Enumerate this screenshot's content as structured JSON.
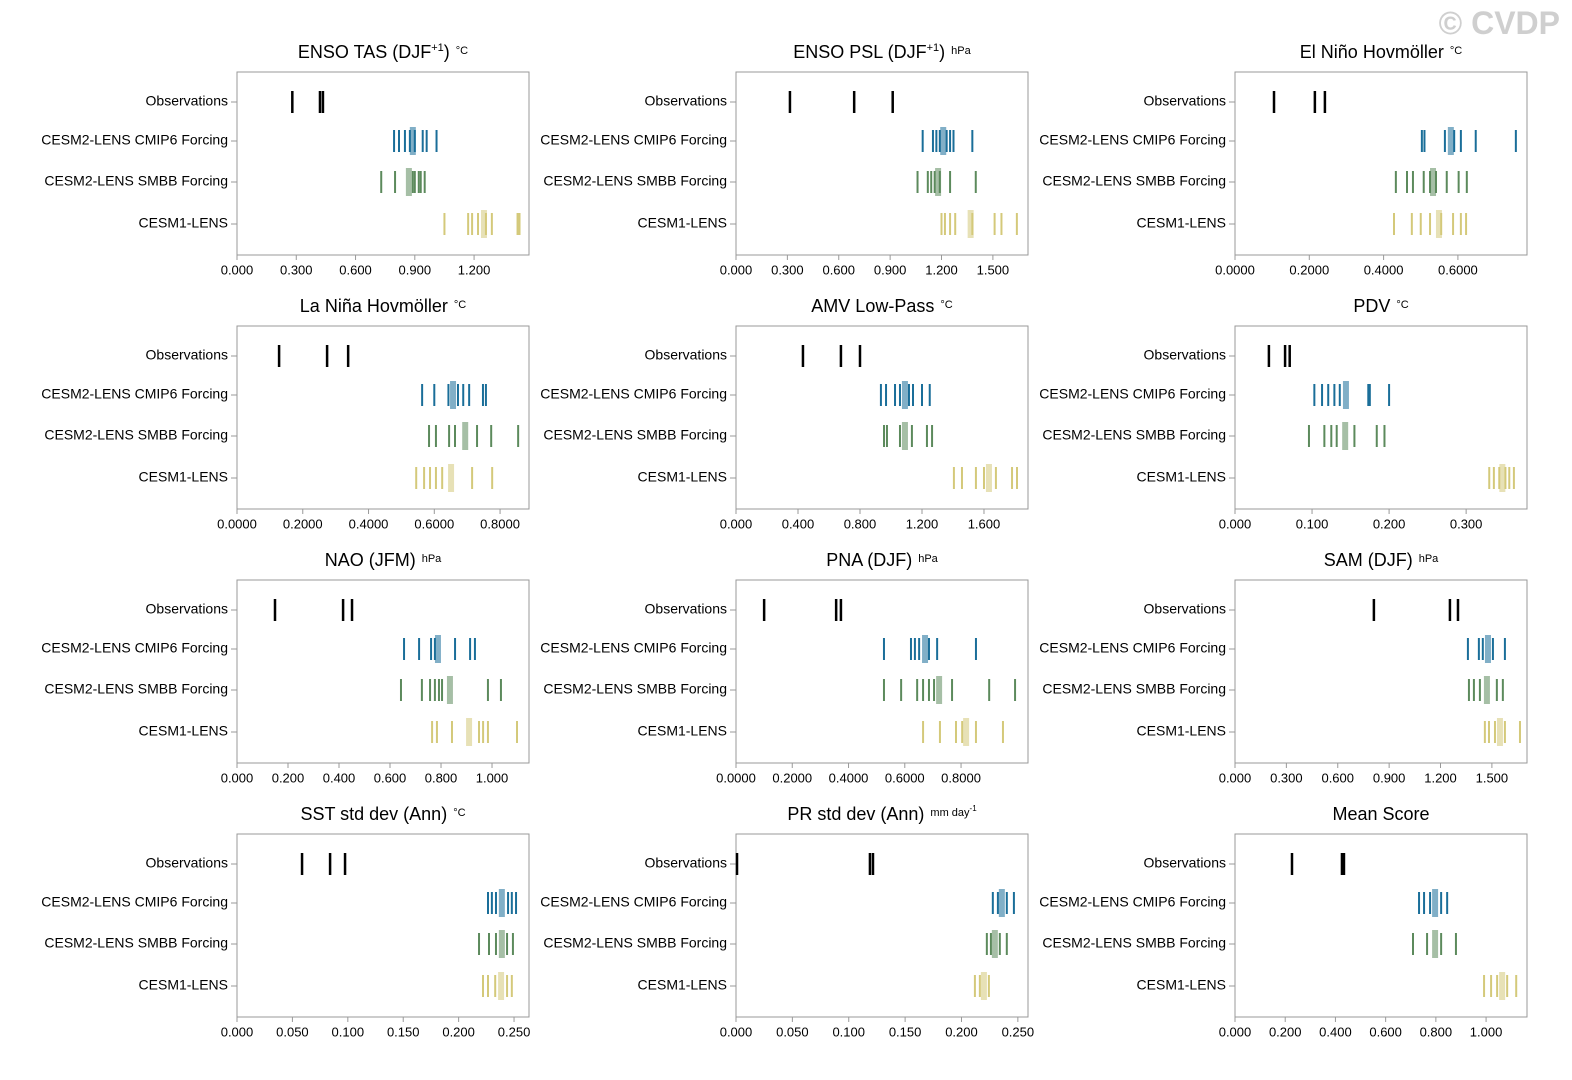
{
  "watermark": "© CVDP",
  "chart_data": [
    {
      "type": "strip",
      "title": "ENSO TAS (DJF",
      "title_sup": "+1",
      "title_end": ")",
      "units": "°C",
      "xlim": [
        0,
        1.478
      ],
      "xticks": [
        {
          "value": 0,
          "label": "0.000"
        },
        {
          "value": 0.3,
          "label": "0.300"
        },
        {
          "value": 0.6,
          "label": "0.600"
        },
        {
          "value": 0.9,
          "label": "0.900"
        },
        {
          "value": 1.2,
          "label": "1.200"
        }
      ],
      "rows": [
        {
          "label": "Observations",
          "color": "#000000",
          "values": [
            0.28,
            0.42,
            0.435
          ]
        },
        {
          "label": "CESM2-LENS CMIP6 Forcing",
          "color": "#1a6e99",
          "values": [
            0.795,
            0.82,
            0.85,
            0.875,
            0.9,
            0.94,
            0.96,
            1.01
          ],
          "mean": 0.89
        },
        {
          "label": "CESM2-LENS SMBB Forcing",
          "color": "#5c8a5c",
          "values": [
            0.73,
            0.8,
            0.89,
            0.9,
            0.92,
            0.93,
            0.95
          ],
          "mean": 0.87
        },
        {
          "label": "CESM1-LENS",
          "color": "#d4c97a",
          "values": [
            1.05,
            1.17,
            1.19,
            1.22,
            1.26,
            1.29,
            1.42,
            1.43
          ],
          "mean": 1.25
        }
      ]
    },
    {
      "type": "strip",
      "title": "ENSO PSL (DJF",
      "title_sup": "+1",
      "title_end": ")",
      "units": "hPa",
      "xlim": [
        0,
        1.705
      ],
      "xticks": [
        {
          "value": 0,
          "label": "0.000"
        },
        {
          "value": 0.3,
          "label": "0.300"
        },
        {
          "value": 0.6,
          "label": "0.600"
        },
        {
          "value": 0.9,
          "label": "0.900"
        },
        {
          "value": 1.2,
          "label": "1.200"
        },
        {
          "value": 1.5,
          "label": "1.500"
        }
      ],
      "rows": [
        {
          "label": "Observations",
          "color": "#000000",
          "values": [
            0.315,
            0.69,
            0.915
          ]
        },
        {
          "label": "CESM2-LENS CMIP6 Forcing",
          "color": "#1a6e99",
          "values": [
            1.09,
            1.15,
            1.17,
            1.19,
            1.23,
            1.25,
            1.27,
            1.38
          ],
          "mean": 1.21
        },
        {
          "label": "CESM2-LENS SMBB Forcing",
          "color": "#5c8a5c",
          "values": [
            1.06,
            1.12,
            1.14,
            1.16,
            1.19,
            1.25,
            1.4
          ],
          "mean": 1.18
        },
        {
          "label": "CESM1-LENS",
          "color": "#d4c97a",
          "values": [
            1.2,
            1.22,
            1.25,
            1.28,
            1.38,
            1.51,
            1.55,
            1.64
          ],
          "mean": 1.37
        }
      ]
    },
    {
      "type": "strip",
      "title": "El Niño Hovmöller",
      "units": "°C",
      "xlim": [
        0,
        0.786
      ],
      "xticks": [
        {
          "value": 0,
          "label": "0.0000"
        },
        {
          "value": 0.2,
          "label": "0.2000"
        },
        {
          "value": 0.4,
          "label": "0.4000"
        },
        {
          "value": 0.6,
          "label": "0.6000"
        }
      ],
      "rows": [
        {
          "label": "Observations",
          "color": "#000000",
          "values": [
            0.105,
            0.215,
            0.242
          ]
        },
        {
          "label": "CESM2-LENS CMIP6 Forcing",
          "color": "#1a6e99",
          "values": [
            0.503,
            0.51,
            0.565,
            0.59,
            0.608,
            0.648,
            0.756
          ],
          "mean": 0.581
        },
        {
          "label": "CESM2-LENS SMBB Forcing",
          "color": "#5c8a5c",
          "values": [
            0.433,
            0.463,
            0.479,
            0.508,
            0.525,
            0.541,
            0.57,
            0.602,
            0.624
          ],
          "mean": 0.533
        },
        {
          "label": "CESM1-LENS",
          "color": "#d4c97a",
          "values": [
            0.428,
            0.476,
            0.5,
            0.525,
            0.555,
            0.587,
            0.608,
            0.622
          ],
          "mean": 0.549
        }
      ]
    },
    {
      "type": "strip",
      "title": "La Niña Hovmöller",
      "units": "°C",
      "xlim": [
        0,
        0.888
      ],
      "xticks": [
        {
          "value": 0,
          "label": "0.0000"
        },
        {
          "value": 0.2,
          "label": "0.2000"
        },
        {
          "value": 0.4,
          "label": "0.4000"
        },
        {
          "value": 0.6,
          "label": "0.6000"
        },
        {
          "value": 0.8,
          "label": "0.8000"
        }
      ],
      "rows": [
        {
          "label": "Observations",
          "color": "#000000",
          "values": [
            0.128,
            0.274,
            0.338
          ]
        },
        {
          "label": "CESM2-LENS CMIP6 Forcing",
          "color": "#1a6e99",
          "values": [
            0.563,
            0.6,
            0.643,
            0.672,
            0.688,
            0.706,
            0.748,
            0.757
          ],
          "mean": 0.657
        },
        {
          "label": "CESM2-LENS SMBB Forcing",
          "color": "#5c8a5c",
          "values": [
            0.584,
            0.605,
            0.645,
            0.663,
            0.73,
            0.773,
            0.855
          ],
          "mean": 0.694
        },
        {
          "label": "CESM1-LENS",
          "color": "#d4c97a",
          "values": [
            0.545,
            0.569,
            0.587,
            0.605,
            0.624,
            0.715,
            0.776
          ],
          "mean": 0.651
        }
      ]
    },
    {
      "type": "strip",
      "title": "AMV Low-Pass",
      "units": "°C",
      "xlim": [
        0,
        1.884
      ],
      "xticks": [
        {
          "value": 0,
          "label": "0.000"
        },
        {
          "value": 0.4,
          "label": "0.400"
        },
        {
          "value": 0.8,
          "label": "0.800"
        },
        {
          "value": 1.2,
          "label": "1.200"
        },
        {
          "value": 1.6,
          "label": "1.600"
        }
      ],
      "rows": [
        {
          "label": "Observations",
          "color": "#000000",
          "values": [
            0.432,
            0.677,
            0.8
          ]
        },
        {
          "label": "CESM2-LENS CMIP6 Forcing",
          "color": "#1a6e99",
          "values": [
            0.935,
            0.968,
            1.026,
            1.058,
            1.116,
            1.142,
            1.2,
            1.25
          ],
          "mean": 1.09
        },
        {
          "label": "CESM2-LENS SMBB Forcing",
          "color": "#5c8a5c",
          "values": [
            0.955,
            0.974,
            1.058,
            1.135,
            1.232,
            1.265
          ],
          "mean": 1.09
        },
        {
          "label": "CESM1-LENS",
          "color": "#d4c97a",
          "values": [
            1.406,
            1.458,
            1.548,
            1.6,
            1.677,
            1.781,
            1.813
          ],
          "mean": 1.632
        }
      ]
    },
    {
      "type": "strip",
      "title": "PDV",
      "units": "°C",
      "xlim": [
        0,
        0.379
      ],
      "xticks": [
        {
          "value": 0,
          "label": "0.000"
        },
        {
          "value": 0.1,
          "label": "0.100"
        },
        {
          "value": 0.2,
          "label": "0.200"
        },
        {
          "value": 0.3,
          "label": "0.300"
        }
      ],
      "rows": [
        {
          "label": "Observations",
          "color": "#000000",
          "values": [
            0.044,
            0.065,
            0.071
          ]
        },
        {
          "label": "CESM2-LENS CMIP6 Forcing",
          "color": "#1a6e99",
          "values": [
            0.103,
            0.113,
            0.121,
            0.129,
            0.136,
            0.173,
            0.175,
            0.2
          ],
          "mean": 0.144
        },
        {
          "label": "CESM2-LENS SMBB Forcing",
          "color": "#5c8a5c",
          "values": [
            0.096,
            0.116,
            0.125,
            0.132,
            0.155,
            0.184,
            0.194
          ],
          "mean": 0.143
        },
        {
          "label": "CESM1-LENS",
          "color": "#d4c97a",
          "values": [
            0.33,
            0.336,
            0.343,
            0.351,
            0.356,
            0.362
          ],
          "mean": 0.347
        }
      ]
    },
    {
      "type": "strip",
      "title": "NAO (JFM)",
      "units": "hPa",
      "xlim": [
        0,
        1.145
      ],
      "xticks": [
        {
          "value": 0,
          "label": "0.000"
        },
        {
          "value": 0.2,
          "label": "0.200"
        },
        {
          "value": 0.4,
          "label": "0.400"
        },
        {
          "value": 0.6,
          "label": "0.600"
        },
        {
          "value": 0.8,
          "label": "0.800"
        },
        {
          "value": 1,
          "label": "1.000"
        }
      ],
      "rows": [
        {
          "label": "Observations",
          "color": "#000000",
          "values": [
            0.149,
            0.416,
            0.451
          ]
        },
        {
          "label": "CESM2-LENS CMIP6 Forcing",
          "color": "#1a6e99",
          "values": [
            0.655,
            0.714,
            0.761,
            0.776,
            0.855,
            0.914,
            0.933
          ],
          "mean": 0.788
        },
        {
          "label": "CESM2-LENS SMBB Forcing",
          "color": "#5c8a5c",
          "values": [
            0.643,
            0.725,
            0.757,
            0.776,
            0.792,
            0.804,
            0.984,
            1.035
          ],
          "mean": 0.835
        },
        {
          "label": "CESM1-LENS",
          "color": "#d4c97a",
          "values": [
            0.765,
            0.784,
            0.843,
            0.949,
            0.965,
            0.984,
            1.098
          ],
          "mean": 0.91
        }
      ]
    },
    {
      "type": "strip",
      "title": "PNA (DJF)",
      "units": "hPa",
      "xlim": [
        0,
        1.038
      ],
      "xticks": [
        {
          "value": 0,
          "label": "0.0000"
        },
        {
          "value": 0.2,
          "label": "0.2000"
        },
        {
          "value": 0.4,
          "label": "0.4000"
        },
        {
          "value": 0.6,
          "label": "0.6000"
        },
        {
          "value": 0.8,
          "label": "0.8000"
        }
      ],
      "rows": [
        {
          "label": "Observations",
          "color": "#000000",
          "values": [
            0.1,
            0.356,
            0.373
          ]
        },
        {
          "label": "CESM2-LENS CMIP6 Forcing",
          "color": "#1a6e99",
          "values": [
            0.526,
            0.622,
            0.636,
            0.651,
            0.686,
            0.715,
            0.853
          ],
          "mean": 0.672
        },
        {
          "label": "CESM2-LENS SMBB Forcing",
          "color": "#5c8a5c",
          "values": [
            0.526,
            0.587,
            0.644,
            0.665,
            0.686,
            0.704,
            0.768,
            0.9,
            0.992
          ],
          "mean": 0.722
        },
        {
          "label": "CESM1-LENS",
          "color": "#d4c97a",
          "values": [
            0.665,
            0.725,
            0.782,
            0.804,
            0.853,
            0.949
          ],
          "mean": 0.818
        }
      ]
    },
    {
      "type": "strip",
      "title": "SAM (DJF)",
      "units": "hPa",
      "xlim": [
        0,
        1.705
      ],
      "xticks": [
        {
          "value": 0,
          "label": "0.000"
        },
        {
          "value": 0.3,
          "label": "0.300"
        },
        {
          "value": 0.6,
          "label": "0.600"
        },
        {
          "value": 0.9,
          "label": "0.900"
        },
        {
          "value": 1.2,
          "label": "1.200"
        },
        {
          "value": 1.5,
          "label": "1.500"
        }
      ],
      "rows": [
        {
          "label": "Observations",
          "color": "#000000",
          "values": [
            0.811,
            1.255,
            1.302
          ]
        },
        {
          "label": "CESM2-LENS CMIP6 Forcing",
          "color": "#1a6e99",
          "values": [
            1.36,
            1.424,
            1.447,
            1.506,
            1.576
          ],
          "mean": 1.477
        },
        {
          "label": "CESM2-LENS SMBB Forcing",
          "color": "#5c8a5c",
          "values": [
            1.366,
            1.395,
            1.43,
            1.529,
            1.564
          ],
          "mean": 1.471
        },
        {
          "label": "CESM1-LENS",
          "color": "#d4c97a",
          "values": [
            1.459,
            1.483,
            1.518,
            1.576,
            1.664
          ],
          "mean": 1.547
        }
      ]
    },
    {
      "type": "strip",
      "title": "SST std dev (Ann)",
      "units": "°C",
      "xlim": [
        0,
        0.2635
      ],
      "xticks": [
        {
          "value": 0,
          "label": "0.000"
        },
        {
          "value": 0.05,
          "label": "0.050"
        },
        {
          "value": 0.1,
          "label": "0.100"
        },
        {
          "value": 0.15,
          "label": "0.150"
        },
        {
          "value": 0.2,
          "label": "0.200"
        },
        {
          "value": 0.25,
          "label": "0.250"
        }
      ],
      "rows": [
        {
          "label": "Observations",
          "color": "#000000",
          "values": [
            0.0587,
            0.084,
            0.0975
          ]
        },
        {
          "label": "CESM2-LENS CMIP6 Forcing",
          "color": "#1a6e99",
          "values": [
            0.2265,
            0.23,
            0.2337,
            0.2446,
            0.248,
            0.2518
          ],
          "mean": 0.239
        },
        {
          "label": "CESM2-LENS SMBB Forcing",
          "color": "#5c8a5c",
          "values": [
            0.2184,
            0.2274,
            0.2337,
            0.2437,
            0.249
          ],
          "mean": 0.239
        },
        {
          "label": "CESM1-LENS",
          "color": "#d4c97a",
          "values": [
            0.222,
            0.2265,
            0.233,
            0.2437,
            0.248
          ],
          "mean": 0.2383
        }
      ]
    },
    {
      "type": "strip",
      "title": "PR std dev (Ann)",
      "units": "mm day",
      "units_sup": "-1",
      "xlim": [
        0,
        0.259
      ],
      "xticks": [
        {
          "value": 0,
          "label": "0.000"
        },
        {
          "value": 0.05,
          "label": "0.050"
        },
        {
          "value": 0.1,
          "label": "0.100"
        },
        {
          "value": 0.15,
          "label": "0.150"
        },
        {
          "value": 0.2,
          "label": "0.200"
        },
        {
          "value": 0.25,
          "label": "0.250"
        }
      ],
      "rows": [
        {
          "label": "Observations",
          "color": "#000000",
          "values": [
            0.0009,
            0.1188,
            0.1215
          ]
        },
        {
          "label": "CESM2-LENS CMIP6 Forcing",
          "color": "#1a6e99",
          "values": [
            0.2278,
            0.2323,
            0.2402,
            0.2465
          ],
          "mean": 0.2358
        },
        {
          "label": "CESM2-LENS SMBB Forcing",
          "color": "#5c8a5c",
          "values": [
            0.2225,
            0.2261,
            0.234,
            0.2402
          ],
          "mean": 0.2296
        },
        {
          "label": "CESM1-LENS",
          "color": "#d4c97a",
          "values": [
            0.2119,
            0.2163,
            0.2243
          ],
          "mean": 0.2199
        }
      ]
    },
    {
      "type": "strip",
      "title": "Mean Score",
      "xlim": [
        0,
        1.163
      ],
      "xticks": [
        {
          "value": 0,
          "label": "0.000"
        },
        {
          "value": 0.2,
          "label": "0.200"
        },
        {
          "value": 0.4,
          "label": "0.400"
        },
        {
          "value": 0.6,
          "label": "0.600"
        },
        {
          "value": 0.8,
          "label": "0.800"
        },
        {
          "value": 1,
          "label": "1.000"
        }
      ],
      "rows": [
        {
          "label": "Observations",
          "color": "#000000",
          "values": [
            0.227,
            0.426,
            0.434
          ]
        },
        {
          "label": "CESM2-LENS CMIP6 Forcing",
          "color": "#1a6e99",
          "values": [
            0.733,
            0.753,
            0.777,
            0.821,
            0.845
          ],
          "mean": 0.797
        },
        {
          "label": "CESM2-LENS SMBB Forcing",
          "color": "#5c8a5c",
          "values": [
            0.709,
            0.765,
            0.821,
            0.88
          ],
          "mean": 0.797
        },
        {
          "label": "CESM1-LENS",
          "color": "#d4c97a",
          "values": [
            0.992,
            1.02,
            1.044,
            1.084,
            1.12
          ],
          "mean": 1.064
        }
      ]
    }
  ]
}
